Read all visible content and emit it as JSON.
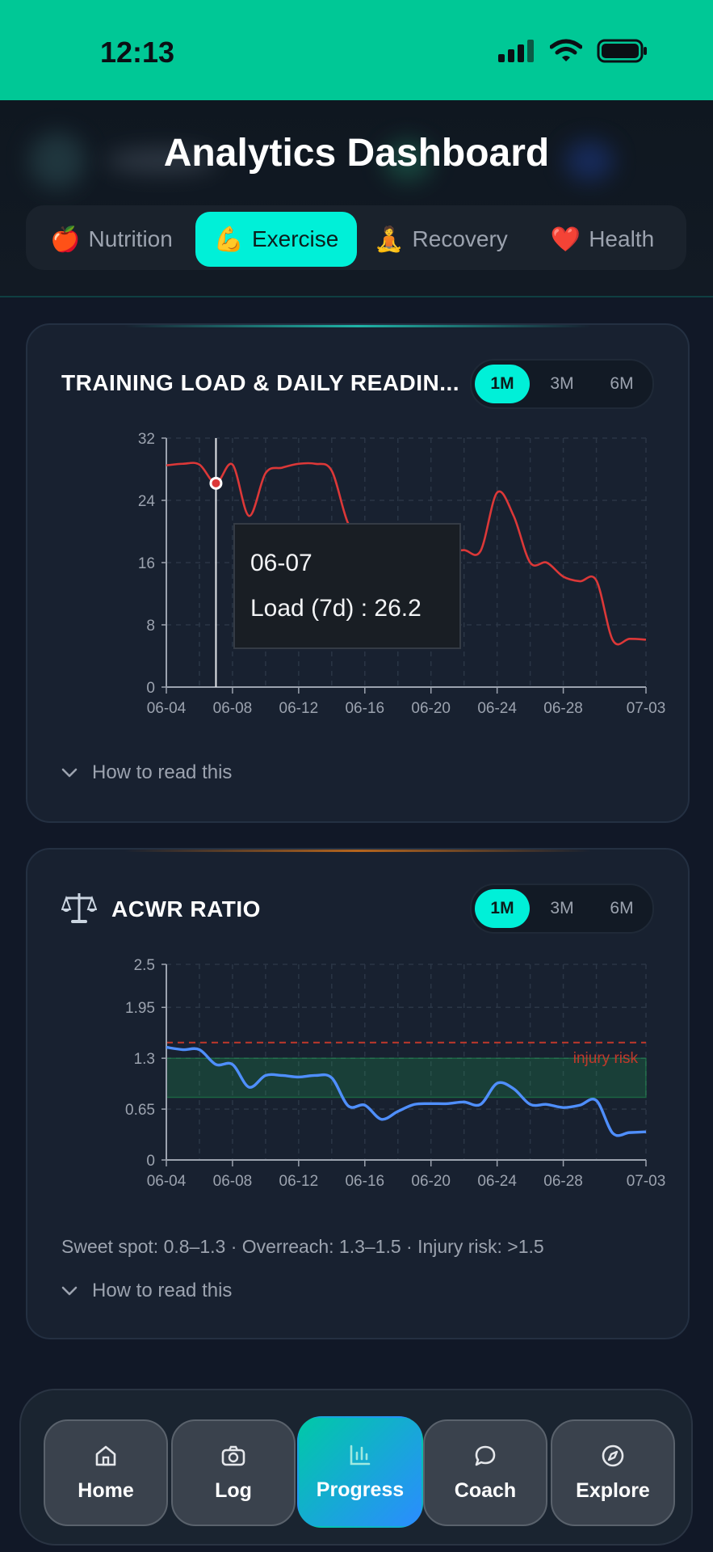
{
  "status": {
    "time": "12:13"
  },
  "header": {
    "title": "Analytics Dashboard"
  },
  "tabs": [
    {
      "emoji": "🍎",
      "label": "Nutrition",
      "active": false
    },
    {
      "emoji": "💪",
      "label": "Exercise",
      "active": true
    },
    {
      "emoji": "🧘",
      "label": "Recovery",
      "active": false
    },
    {
      "emoji": "❤️",
      "label": "Health",
      "active": false
    }
  ],
  "training_card": {
    "title": "TRAINING LOAD & DAILY READIN...",
    "ranges": [
      "1M",
      "3M",
      "6M"
    ],
    "selected_range": "1M",
    "tooltip": {
      "date": "06-07",
      "label": "Load (7d) : 26.2"
    },
    "howto": "How to read this"
  },
  "acwr_card": {
    "icon": "balance-scale-icon",
    "title": "ACWR RATIO",
    "ranges": [
      "1M",
      "3M",
      "6M"
    ],
    "selected_range": "1M",
    "legend_text": "Sweet spot: 0.8–1.3 · Overreach: 1.3–1.5 · Injury risk: >1.5",
    "howto": "How to read this"
  },
  "nav": {
    "items": [
      {
        "label": "Home",
        "icon": "home-icon",
        "active": false
      },
      {
        "label": "Log",
        "icon": "camera-icon",
        "active": false
      },
      {
        "label": "Progress",
        "icon": "bar-chart-icon",
        "active": true
      },
      {
        "label": "Coach",
        "icon": "chat-bubble-icon",
        "active": false
      },
      {
        "label": "Explore",
        "icon": "compass-icon",
        "active": false
      }
    ]
  },
  "colors": {
    "accent": "#00f0d8",
    "status_bar": "#00c896",
    "load_line": "#dc3838",
    "acwr_line": "#4f8fff",
    "injury_line": "#c0392b",
    "sweet_band": "#1f6b4a"
  },
  "chart_data": [
    {
      "type": "line",
      "title": "TRAINING LOAD & DAILY READIN...",
      "x_ticks": [
        "06-04",
        "06-08",
        "06-12",
        "06-16",
        "06-20",
        "06-24",
        "06-28",
        "07-03"
      ],
      "ylim": [
        0,
        32
      ],
      "y_ticks": [
        "0",
        "8",
        "16",
        "24",
        "32"
      ],
      "grid": true,
      "series": [
        {
          "name": "Load (7d)",
          "x": [
            "06-04",
            "06-05",
            "06-06",
            "06-07",
            "06-08",
            "06-09",
            "06-10",
            "06-11",
            "06-12",
            "06-13",
            "06-14",
            "06-15",
            "06-16",
            "06-17",
            "06-18",
            "06-19",
            "06-20",
            "06-21",
            "06-22",
            "06-23",
            "06-24",
            "06-25",
            "06-26",
            "06-27",
            "06-28",
            "06-29",
            "06-30",
            "07-01",
            "07-02",
            "07-03"
          ],
          "values": [
            28.5,
            28.7,
            28.6,
            26.2,
            28.6,
            22.0,
            27.5,
            28.2,
            28.7,
            28.7,
            27.8,
            21.0,
            19.0,
            18.0,
            17.5,
            17.8,
            17.6,
            17.4,
            17.6,
            17.5,
            25.0,
            22.0,
            16.0,
            16.0,
            14.2,
            13.6,
            13.7,
            6.0,
            6.2,
            6.1
          ]
        }
      ],
      "annotations": [
        {
          "date": "06-07",
          "value": 26.2,
          "text": "Load (7d) : 26.2"
        }
      ]
    },
    {
      "type": "line",
      "title": "ACWR RATIO",
      "x_ticks": [
        "06-04",
        "06-08",
        "06-12",
        "06-16",
        "06-20",
        "06-24",
        "06-28",
        "07-03"
      ],
      "ylim": [
        0,
        2.5
      ],
      "y_ticks": [
        "0",
        "0.65",
        "1.3",
        "1.95",
        "2.5"
      ],
      "grid": true,
      "bands": [
        {
          "from": 0.8,
          "to": 1.3
        }
      ],
      "reference_lines": [
        {
          "y": 1.5,
          "label": "injury risk"
        }
      ],
      "series": [
        {
          "x": [
            "06-04",
            "06-05",
            "06-06",
            "06-07",
            "06-08",
            "06-09",
            "06-10",
            "06-11",
            "06-12",
            "06-13",
            "06-14",
            "06-15",
            "06-16",
            "06-17",
            "06-18",
            "06-19",
            "06-20",
            "06-21",
            "06-22",
            "06-23",
            "06-24",
            "06-25",
            "06-26",
            "06-27",
            "06-28",
            "06-29",
            "06-30",
            "07-01",
            "07-02",
            "07-03"
          ],
          "values": [
            1.44,
            1.41,
            1.41,
            1.22,
            1.22,
            0.93,
            1.08,
            1.08,
            1.06,
            1.08,
            1.05,
            0.69,
            0.7,
            0.52,
            0.62,
            0.71,
            0.72,
            0.72,
            0.74,
            0.71,
            0.98,
            0.91,
            0.71,
            0.71,
            0.67,
            0.7,
            0.76,
            0.34,
            0.35,
            0.36
          ]
        }
      ]
    }
  ]
}
